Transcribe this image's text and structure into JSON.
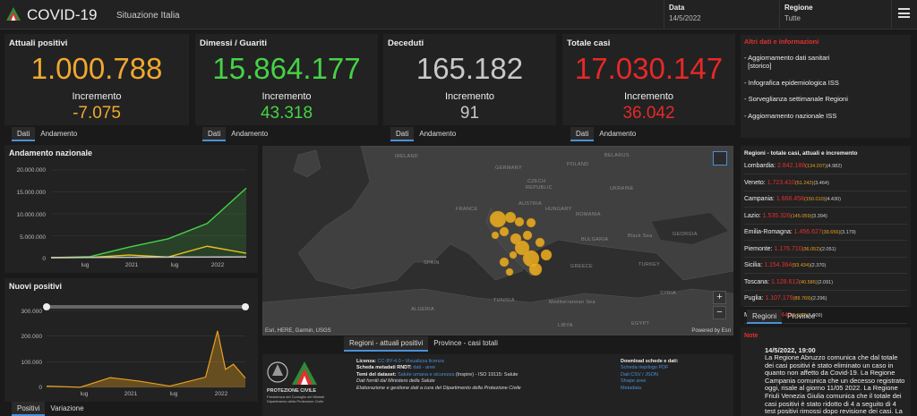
{
  "header": {
    "title": "COVID-19",
    "subtitle": "Situazione Italia",
    "date_label": "Data",
    "date_value": "14/5/2022",
    "region_label": "Regione",
    "region_value": "Tutte"
  },
  "kpis": [
    {
      "label": "Attuali positivi",
      "value": "1.000.788",
      "inc_label": "Incremento",
      "inc": "-7.075",
      "color": "#f0a830",
      "inc_color": "#f0a830"
    },
    {
      "label": "Dimessi / Guariti",
      "value": "15.864.177",
      "inc_label": "Incremento",
      "inc": "43.318",
      "color": "#46d246",
      "inc_color": "#46d246"
    },
    {
      "label": "Deceduti",
      "value": "165.182",
      "inc_label": "Incremento",
      "inc": "91",
      "color": "#c8c8c8",
      "inc_color": "#c8c8c8"
    },
    {
      "label": "Totale casi",
      "value": "17.030.147",
      "inc_label": "Incremento",
      "inc": "36.042",
      "color": "#e82828",
      "inc_color": "#e82828"
    }
  ],
  "kpi_tabs": {
    "dati": "Dati",
    "andamento": "Andamento"
  },
  "info": {
    "head": "Altri dati e informazioni",
    "items": [
      "- Aggiornamento dati sanitari",
      "  [storico]",
      "- Infografica epidemiologica ISS",
      "- Sorveglianza settimanale Regioni",
      "- Aggiornamento nazionale ISS"
    ]
  },
  "chart1": {
    "title": "Andamento nazionale",
    "yticks": [
      "20.000.000",
      "15.000.000",
      "10.000.000",
      "5.000.000",
      "0"
    ],
    "xticks": [
      "lug",
      "2021",
      "lug",
      "2022"
    ]
  },
  "chart2": {
    "title": "Nuovi positivi",
    "yticks": [
      "300.000",
      "200.000",
      "100.000",
      "0"
    ],
    "xticks": [
      "lug",
      "2021",
      "lug",
      "2022"
    ],
    "tab_positivi": "Positivi",
    "tab_variazione": "Variazione"
  },
  "chart_data": [
    {
      "type": "area",
      "title": "Andamento nazionale",
      "ylim": [
        0,
        20000000
      ],
      "x": [
        "2020-03",
        "2020-07",
        "2021-01",
        "2021-07",
        "2022-01",
        "2022-05"
      ],
      "series": [
        {
          "values": [
            0,
            250000,
            2400000,
            4300000,
            7800000,
            15864177
          ],
          "color": "#46d246"
        },
        {
          "values": [
            0,
            50000,
            600000,
            150000,
            2600000,
            1000788
          ],
          "color": "#e8c020"
        },
        {
          "values": [
            0,
            35000,
            80000,
            128000,
            140000,
            165182
          ],
          "color": "#c8c8c8"
        }
      ]
    },
    {
      "type": "area",
      "title": "Nuovi positivi",
      "ylim": [
        0,
        300000
      ],
      "x": [
        "2020-03",
        "2020-07",
        "2020-11",
        "2021-03",
        "2021-07",
        "2021-12",
        "2022-01",
        "2022-02",
        "2022-03",
        "2022-05"
      ],
      "series": [
        {
          "values": [
            5000,
            500,
            38000,
            25000,
            5000,
            40000,
            220000,
            70000,
            90000,
            36042
          ],
          "color": "#e8a020"
        }
      ]
    }
  ],
  "map": {
    "labels": [
      "IRELAND",
      "GERMANY",
      "CZECH",
      "REPUBLIC",
      "FRANCE",
      "AUSTRIA",
      "HUNGARY",
      "ROMANIA",
      "UKRAINE",
      "BELARUS",
      "POLAND",
      "SPAIN",
      "BULGARIA",
      "Black Sea",
      "GEORGIA",
      "GREECE",
      "TURKEY",
      "TUNISIA",
      "ALGERIA",
      "SYRIA",
      "Mediterranean Sea",
      "LIBYA",
      "EGYPT"
    ],
    "attribution": "Esri, HERE, Garmin, USGS",
    "powered": "Powered by Esri",
    "zoom_in": "+",
    "zoom_out": "−"
  },
  "map_tabs": {
    "regioni": "Regioni - attuali positivi",
    "province": "Province - casi totali"
  },
  "regioni": {
    "head": "Regioni - totale casi, attuali e incremento",
    "rows": [
      {
        "name": "Lombardia:",
        "tot": "2.842.188",
        "att": "(134.207)",
        "inc": "(4.982)"
      },
      {
        "name": "Veneto:",
        "tot": "1.723.410",
        "att": "(51.242)",
        "inc": "(3.464)"
      },
      {
        "name": "Campania:",
        "tot": "1.668.458",
        "att": "(150.010)",
        "inc": "(4.430)"
      },
      {
        "name": "Lazio:",
        "tot": "1.535.326",
        "att": "(145.059)",
        "inc": "(3.394)"
      },
      {
        "name": "Emilia-Romagna:",
        "tot": "1.456.627",
        "att": "(39.656)",
        "inc": "(3.179)"
      },
      {
        "name": "Piemonte:",
        "tot": "1.176.710",
        "att": "(36.052)",
        "inc": "(2.051)"
      },
      {
        "name": "Sicilia:",
        "tot": "1.154.364",
        "att": "(93.434)",
        "inc": "(2.370)"
      },
      {
        "name": "Toscana:",
        "tot": "1.128.612",
        "att": "(40.586)",
        "inc": "(2.091)"
      },
      {
        "name": "Puglia:",
        "tot": "1.107.179",
        "att": "(89.769)",
        "inc": "(2.296)"
      },
      {
        "name": "Marche:",
        "tot": "462.440",
        "att": "(5.587)",
        "inc": "(1.009)"
      }
    ],
    "tab_regioni": "Regioni",
    "tab_province": "Province"
  },
  "note": {
    "head": "Note",
    "date": "14/5/2022, 19:00",
    "text": "La Regione Abruzzo comunica che dal totale dei casi positivi è stato eliminato un caso in quanto non affetto da Covid-19. La Regione Campania comunica che un decesso registrato oggi, risale al giorno 11/05 2022. La Regione Friuli Venezia Giulia comunica che il totale dei casi positivi è stato ridotto di 4 a seguito di 4 test positivi rimossi dopo revisione dei casi. La"
  },
  "footer": {
    "dpc_t1": "PROTEZIONE CIVILE",
    "dpc_t2": "Presidenza del Consiglio dei Ministri Dipartimento della Protezione Civile",
    "licenza_l": "Licenza:",
    "licenza_v": "CC-BY-4.0",
    "licenza_link": "Visualizza licenza",
    "scheda_l": "Scheda metadati RNDT:",
    "scheda_link": "dati - aree",
    "temi_l": "Temi del dataset:",
    "temi_link": "Salute umana e sicurezza",
    "temi_rest": "(Inspire) - ISO 19115: Salute",
    "fonte": "Dati forniti dal Ministero della Salute",
    "elab": "Elaborazione e gestione dati a cura del Dipartimento della Protezione Civile",
    "dl_head": "Download schede e dati:",
    "dl_items": [
      "Scheda riepilogo PDF",
      "Dati CSV / JSON",
      "Shape aree",
      "Metadata"
    ]
  }
}
